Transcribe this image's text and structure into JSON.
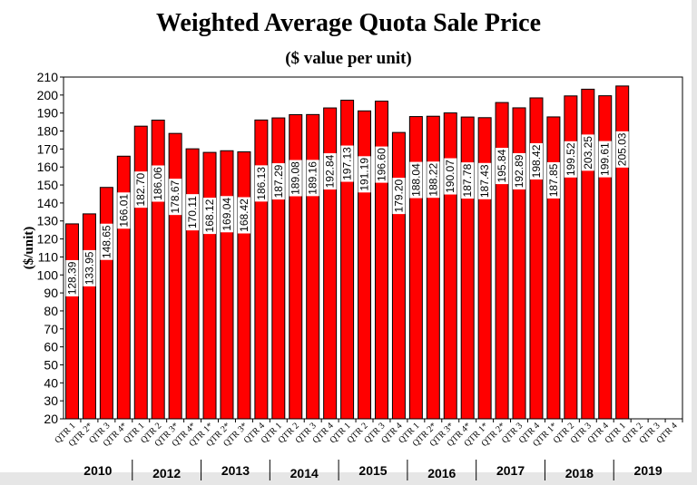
{
  "chart_data": {
    "type": "bar",
    "title": "Weighted Average Quota Sale Price",
    "subtitle": "($ value per unit)",
    "ylabel": "($/unit)",
    "ylim": [
      20,
      210
    ],
    "ytick_step": 10,
    "bar_color": "#ff0000",
    "grid": false,
    "categories": [
      "QTR 1",
      "QTR 2*",
      "QTR 3",
      "QTR 4*",
      "QTR 1",
      "QTR 2",
      "QTR 3*",
      "QTR 4*",
      "QTR 1*",
      "QTR 2*",
      "QTR 3*",
      "QTR 4",
      "QTR 1",
      "QTR 2",
      "QTR 3",
      "QTR 4",
      "QTR 1",
      "QTR 2",
      "QTR 3",
      "QTR 4",
      "QTR 1",
      "QTR 2*",
      "QTR 3*",
      "QTR 4*",
      "QTR 1*",
      "QTR 2*",
      "QTR 3",
      "QTR 4",
      "QTR 1*",
      "QTR 2",
      "QTR 3",
      "QTR 4",
      "QTR 1",
      "QTR 2",
      "QTR 3",
      "QTR 4"
    ],
    "groups": [
      "2010",
      "2012",
      "2013",
      "2014",
      "2015",
      "2016",
      "2017",
      "2018",
      "2019"
    ],
    "values": [
      128.39,
      133.95,
      148.65,
      166.01,
      182.7,
      186.06,
      178.67,
      170.11,
      168.12,
      169.04,
      168.42,
      186.13,
      187.29,
      189.08,
      189.16,
      192.84,
      197.13,
      191.19,
      196.6,
      179.2,
      188.04,
      188.22,
      190.07,
      187.78,
      187.43,
      195.84,
      192.89,
      198.42,
      187.85,
      199.52,
      203.25,
      199.61,
      205.03,
      null,
      null,
      null
    ]
  }
}
